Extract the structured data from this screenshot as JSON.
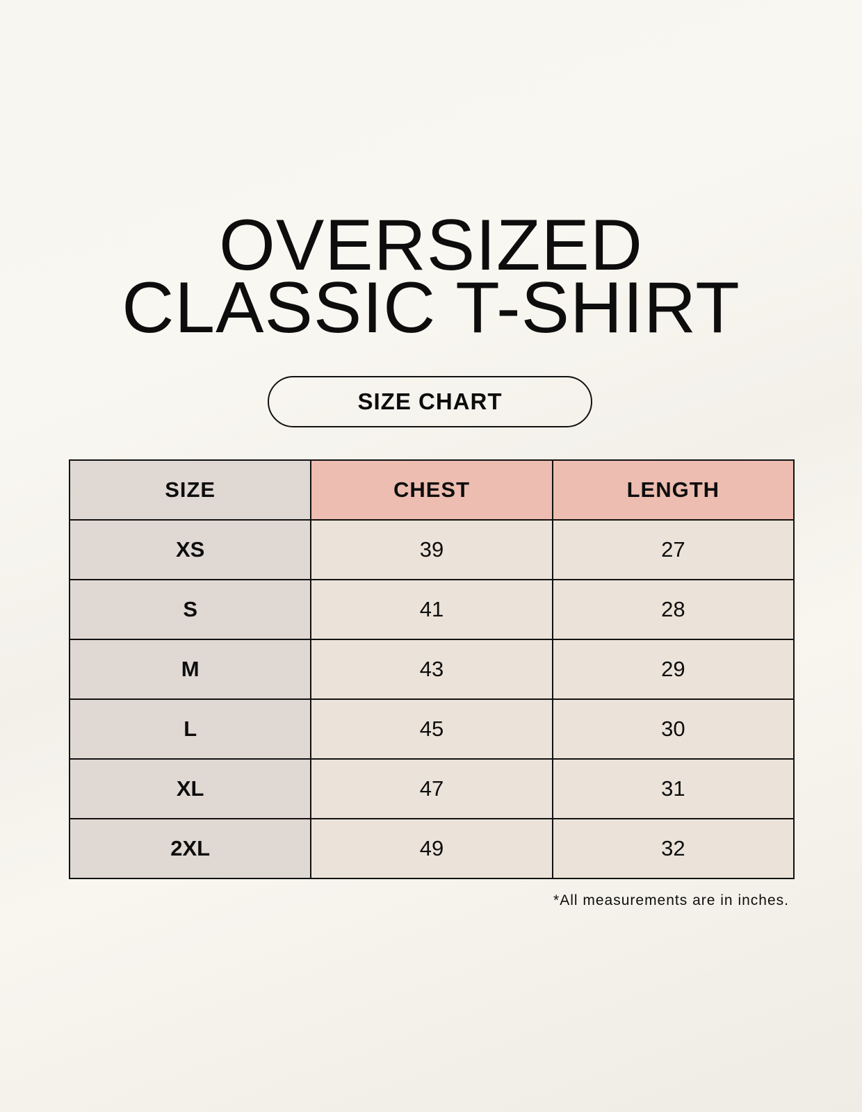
{
  "title": {
    "line1": "OVERSIZED",
    "line2": "CLASSIC T-SHIRT"
  },
  "badge": "SIZE CHART",
  "table": {
    "headers": [
      "SIZE",
      "CHEST",
      "LENGTH"
    ],
    "rows": [
      [
        "XS",
        "39",
        "27"
      ],
      [
        "S",
        "41",
        "28"
      ],
      [
        "M",
        "43",
        "29"
      ],
      [
        "L",
        "45",
        "30"
      ],
      [
        "XL",
        "47",
        "31"
      ],
      [
        "2XL",
        "49",
        "32"
      ]
    ]
  },
  "footnote": "*All measurements are in inches.",
  "colors": {
    "size_column": "#e0d8d3",
    "header_accent": "#ecbdb0",
    "value_cells": "#ebe3d9"
  }
}
